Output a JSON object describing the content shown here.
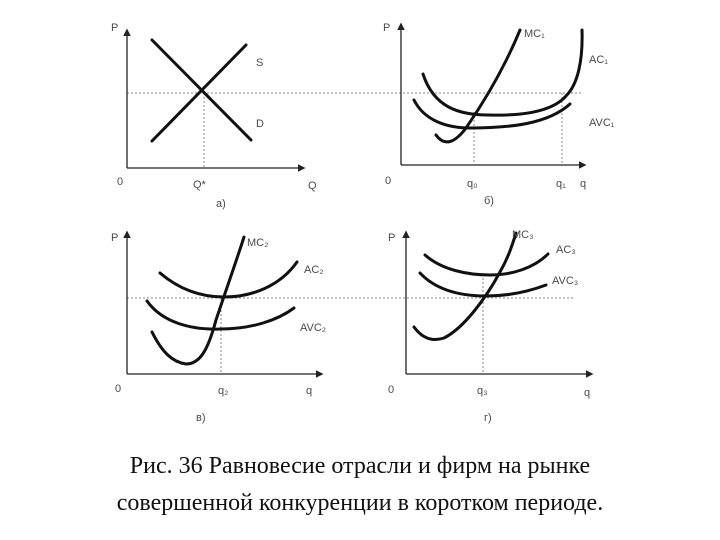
{
  "panels": {
    "a": {
      "label": "а)",
      "p": "P",
      "origin": "0",
      "x_axis": "Q",
      "q_star": "Q*",
      "supply": "S",
      "demand": "D"
    },
    "b": {
      "label": "б)",
      "p": "P",
      "origin": "0",
      "x_axis": "q",
      "q0": "q₀",
      "q1": "q₁",
      "mc": "MC₁",
      "ac": "AC₁",
      "avc": "AVC₁"
    },
    "c": {
      "label": "в)",
      "p": "P",
      "origin": "0",
      "x_axis": "q",
      "q2": "q₂",
      "mc": "MC₂",
      "ac": "AC₂",
      "avc": "AVC₂"
    },
    "d": {
      "label": "г)",
      "p": "P",
      "origin": "0",
      "x_axis": "q",
      "q3": "q₃",
      "mc": "MC₃",
      "ac": "AC₃",
      "avc": "AVC₃"
    }
  },
  "caption": {
    "line1": "Рис. 36 Равновесие отрасли и фирм на рынке",
    "line2": "совершенной конкуренции в коротком периоде."
  },
  "colors": {
    "curve": "#111111",
    "guide": "#888888",
    "label": "#4a4a4a"
  }
}
